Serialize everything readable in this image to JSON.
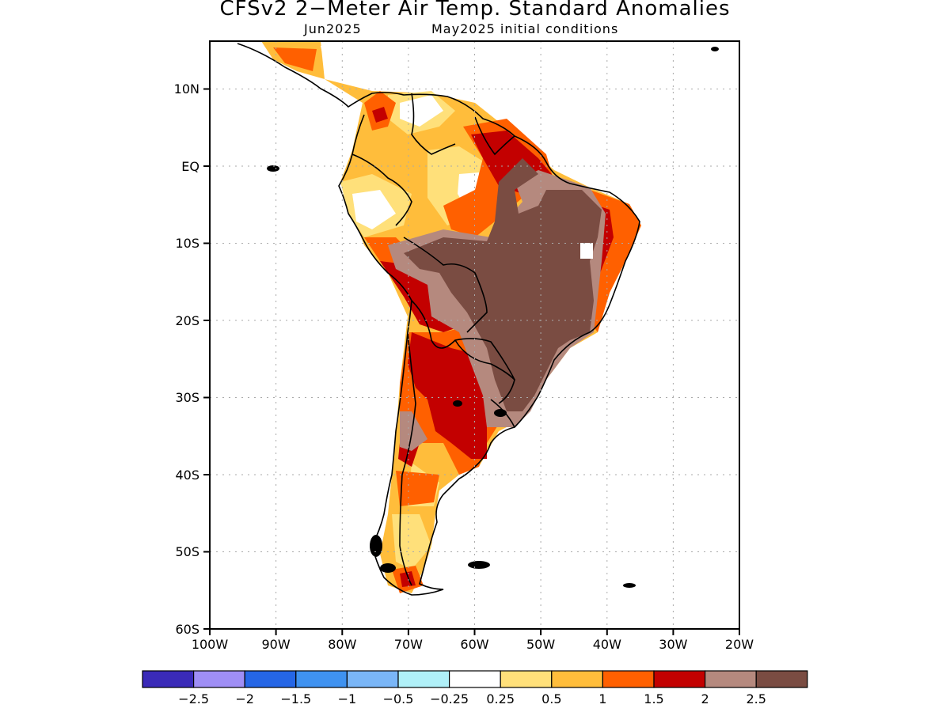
{
  "title": "CFSv2 2−Meter Air Temp. Standard Anomalies",
  "valid_month": "Jun2025",
  "init_note": "May2025 initial conditions",
  "axes": {
    "lon_labels": [
      "100W",
      "90W",
      "80W",
      "70W",
      "60W",
      "50W",
      "40W",
      "30W",
      "20W"
    ],
    "lat_labels": [
      "10N",
      "EQ",
      "10S",
      "20S",
      "30S",
      "40S",
      "50S",
      "60S"
    ],
    "lon_range": [
      -100,
      -20
    ],
    "lat_range": [
      -60,
      16
    ]
  },
  "colorbar": {
    "labels": [
      "−2.5",
      "−2",
      "−1.5",
      "−1",
      "−0.5",
      "−0.25",
      "0.25",
      "0.5",
      "1",
      "1.5",
      "2",
      "2.5"
    ],
    "colors": [
      "#3a2ab8",
      "#9f8ef5",
      "#2566e6",
      "#3f92f0",
      "#7ab6f7",
      "#b0f0f8",
      "#ffffff",
      "#ffe07a",
      "#ffbd3b",
      "#ff6000",
      "#c30000",
      "#b5897e",
      "#7a4c42"
    ]
  },
  "colors": {
    "neutral": "#ffffff",
    "light_warm": "#ffe07a",
    "warm": "#ffbd3b",
    "orange": "#ff6000",
    "red": "#c30000",
    "tan": "#b5897e",
    "brown": "#7a4c42"
  }
}
